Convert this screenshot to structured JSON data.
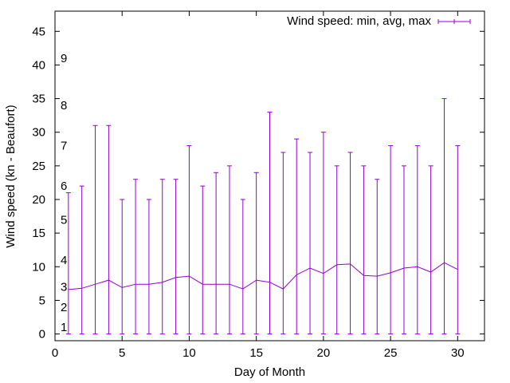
{
  "chart_data": {
    "type": "line",
    "title": "",
    "xlabel": "Day of Month",
    "ylabel": "Wind speed (kn - Beaufort)",
    "xlim": [
      0,
      32
    ],
    "ylim": [
      -1,
      48
    ],
    "xticks": [
      0,
      5,
      10,
      15,
      20,
      25,
      30
    ],
    "yticks": [
      0,
      5,
      10,
      15,
      20,
      25,
      30,
      35,
      40,
      45
    ],
    "grid": false,
    "legend_position": "top-right",
    "series": [
      {
        "name": "Wind speed: min, avg, max",
        "color": "#9400d3",
        "style": "line with y-error bars",
        "x": [
          1,
          2,
          3,
          4,
          5,
          6,
          7,
          8,
          9,
          10,
          11,
          12,
          13,
          14,
          15,
          16,
          17,
          18,
          19,
          20,
          21,
          22,
          23,
          24,
          25,
          26,
          27,
          28,
          29,
          30
        ],
        "min": [
          0,
          0,
          0,
          0,
          0,
          0,
          0,
          0,
          0,
          0,
          0,
          0,
          0,
          0,
          0,
          0,
          0,
          0,
          0,
          0,
          0,
          0,
          0,
          0,
          0,
          0,
          0,
          0,
          0,
          0
        ],
        "avg": [
          6.6,
          6.8,
          7.4,
          8.0,
          6.9,
          7.4,
          7.4,
          7.7,
          8.4,
          8.6,
          7.4,
          7.4,
          7.4,
          6.7,
          8.0,
          7.7,
          6.7,
          8.8,
          9.8,
          9.0,
          10.3,
          10.4,
          8.7,
          8.6,
          9.1,
          9.8,
          10.0,
          9.2,
          10.6,
          9.6
        ],
        "max": [
          21,
          22,
          31,
          31,
          20,
          23,
          20,
          23,
          23,
          28,
          22,
          24,
          25,
          20,
          24,
          33,
          27,
          29,
          27,
          30,
          25,
          27,
          25,
          23,
          28,
          25,
          28,
          25,
          35,
          28
        ]
      }
    ],
    "annotations": [
      {
        "text": "1",
        "y": 1
      },
      {
        "text": "2",
        "y": 4
      },
      {
        "text": "3",
        "y": 7
      },
      {
        "text": "4",
        "y": 11
      },
      {
        "text": "5",
        "y": 17
      },
      {
        "text": "6",
        "y": 22
      },
      {
        "text": "7",
        "y": 28
      },
      {
        "text": "8",
        "y": 34
      },
      {
        "text": "9",
        "y": 41
      }
    ]
  }
}
